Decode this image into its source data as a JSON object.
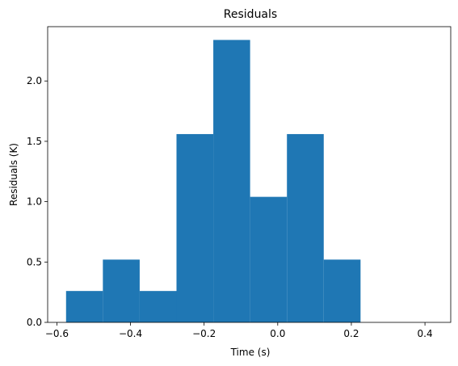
{
  "chart_data": {
    "type": "bar",
    "title": "Residuals",
    "xlabel": "Time (s)",
    "ylabel": "Residuals (K)",
    "xlim": [
      -0.625,
      0.47
    ],
    "ylim": [
      0,
      2.45
    ],
    "xticks": [
      -0.6,
      -0.4,
      -0.2,
      0.0,
      0.2,
      0.4
    ],
    "xtick_labels": [
      "−0.6",
      "−0.4",
      "−0.2",
      "0.0",
      "0.2",
      "0.4"
    ],
    "yticks": [
      0.0,
      0.5,
      1.0,
      1.5,
      2.0
    ],
    "ytick_labels": [
      "0.0",
      "0.5",
      "1.0",
      "1.5",
      "2.0"
    ],
    "bins": [
      {
        "x0": -0.575,
        "x1": -0.475,
        "value": 0.26
      },
      {
        "x0": -0.475,
        "x1": -0.375,
        "value": 0.52
      },
      {
        "x0": -0.375,
        "x1": -0.275,
        "value": 0.26
      },
      {
        "x0": -0.275,
        "x1": -0.175,
        "value": 1.56
      },
      {
        "x0": -0.175,
        "x1": -0.075,
        "value": 2.34
      },
      {
        "x0": -0.075,
        "x1": 0.025,
        "value": 1.04
      },
      {
        "x0": 0.025,
        "x1": 0.125,
        "value": 1.56
      },
      {
        "x0": 0.125,
        "x1": 0.225,
        "value": 0.52
      }
    ],
    "bar_color": "#1f77b4",
    "grid": false,
    "legend": "none"
  }
}
